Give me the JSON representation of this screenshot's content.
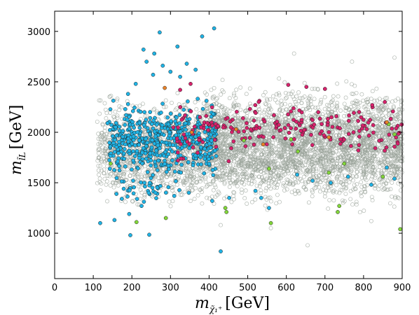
{
  "chart_data": {
    "type": "scatter",
    "title": "",
    "xlabel": {
      "main": "m",
      "subscript": "χ̃₁⁺",
      "unit": "[GeV]"
    },
    "ylabel": {
      "main": "m",
      "subscript": "l̃L",
      "unit": "[GeV]"
    },
    "xlim": [
      0,
      900
    ],
    "ylim": [
      550,
      3200
    ],
    "xticks": [
      0,
      100,
      200,
      300,
      400,
      500,
      600,
      700,
      800,
      900
    ],
    "yticks": [
      1000,
      1500,
      2000,
      2500,
      3000
    ],
    "grid": false,
    "legend": "none",
    "series": [
      {
        "style": "hollow",
        "color": "#9aa39a",
        "clusters": [
          {
            "x_range": [
              110,
              380
            ],
            "y_range": [
              1150,
              2450
            ],
            "n": 900
          },
          {
            "x_range": [
              380,
              900
            ],
            "y_range": [
              1150,
              2600
            ],
            "n": 2600
          },
          {
            "x_range": [
              230,
              900
            ],
            "y_range": [
              1250,
              2400
            ],
            "n": 800
          }
        ],
        "points": [
          [
            620,
            2780
          ],
          [
            770,
            2700
          ],
          [
            880,
            2740
          ],
          [
            655,
            880
          ],
          [
            430,
            1080
          ],
          [
            560,
            1050
          ],
          [
            820,
            1120
          ]
        ]
      },
      {
        "style": "filled",
        "color": "#1fb3e5",
        "clusters": [
          {
            "x_range": [
              140,
              420
            ],
            "y_range": [
              1450,
              2400
            ],
            "n": 520
          },
          {
            "x_range": [
              160,
              360
            ],
            "y_range": [
              1250,
              1600
            ],
            "n": 40
          }
        ],
        "points": [
          [
            272,
            2990
          ],
          [
            413,
            3030
          ],
          [
            382,
            2950
          ],
          [
            230,
            2820
          ],
          [
            318,
            2850
          ],
          [
            258,
            2780
          ],
          [
            280,
            2660
          ],
          [
            342,
            2680
          ],
          [
            238,
            2700
          ],
          [
            325,
            2550
          ],
          [
            365,
            2620
          ],
          [
            190,
            2380
          ],
          [
            210,
            2480
          ],
          [
            255,
            2570
          ],
          [
            300,
            2600
          ],
          [
            137,
            2090
          ],
          [
            118,
            1100
          ],
          [
            155,
            1130
          ],
          [
            196,
            980
          ],
          [
            245,
            985
          ],
          [
            193,
            1190
          ],
          [
            225,
            1270
          ],
          [
            430,
            820
          ],
          [
            408,
            1320
          ],
          [
            452,
            1350
          ],
          [
            535,
            1350
          ],
          [
            520,
            1420
          ],
          [
            555,
            1250
          ],
          [
            628,
            1580
          ],
          [
            668,
            1520
          ],
          [
            715,
            1500
          ],
          [
            760,
            1560
          ],
          [
            820,
            1480
          ],
          [
            880,
            1540
          ],
          [
            860,
            1650
          ]
        ]
      },
      {
        "style": "filled",
        "color": "#d6226b",
        "clusters": [
          {
            "x_range": [
              300,
              900
            ],
            "y_range": [
              1650,
              2350
            ],
            "n": 200
          }
        ],
        "points": [
          [
            325,
            2420
          ],
          [
            352,
            2480
          ],
          [
            652,
            2450
          ],
          [
            700,
            2430
          ],
          [
            855,
            2300
          ],
          [
            605,
            2470
          ]
        ]
      },
      {
        "style": "filled",
        "color": "#82d63a",
        "clusters": [],
        "points": [
          [
            145,
            1690
          ],
          [
            212,
            1110
          ],
          [
            288,
            1150
          ],
          [
            445,
            1210
          ],
          [
            442,
            1250
          ],
          [
            560,
            1100
          ],
          [
            733,
            1210
          ],
          [
            737,
            1270
          ],
          [
            895,
            1040
          ],
          [
            612,
            1930
          ],
          [
            865,
            2080
          ],
          [
            880,
            1980
          ],
          [
            555,
            1640
          ],
          [
            490,
            1920
          ],
          [
            710,
            1600
          ],
          [
            750,
            1690
          ],
          [
            630,
            1810
          ],
          [
            850,
            1560
          ]
        ]
      },
      {
        "style": "filled",
        "color": "#e8832a",
        "clusters": [],
        "points": [
          [
            285,
            2440
          ],
          [
            710,
            1950
          ],
          [
            860,
            2100
          ],
          [
            540,
            1880
          ],
          [
            470,
            2030
          ],
          [
            355,
            2000
          ]
        ]
      }
    ]
  }
}
